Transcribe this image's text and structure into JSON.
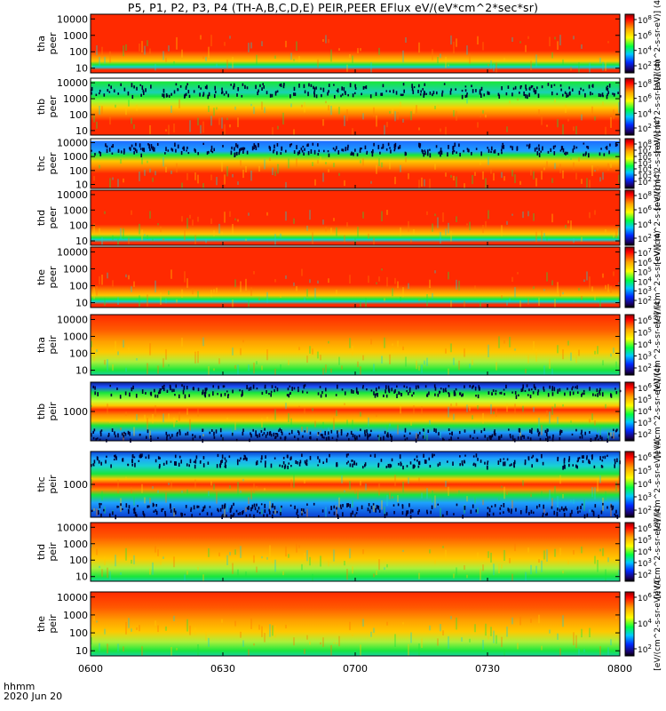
{
  "title": "P5, P1, P2, P3, P4 (TH-A,B,C,D,E) PEIR,PEER EFlux eV/(eV*cm^2*sec*sr)",
  "time_axis": {
    "label_line1": "hhmm",
    "label_line2": "2020 Jun 20",
    "ticks": [
      "0600",
      "0630",
      "0700",
      "0730",
      "0800"
    ]
  },
  "colors": {
    "background": "#ffffff",
    "spectrogram_high": "#ff2a00",
    "spectrogram_mid": "#ffc800",
    "spectrogram_low": "#19e63c",
    "spectrogram_min": "#0a1f8c",
    "gap": "#ffffff"
  },
  "chart_data": [
    {
      "type": "heatmap",
      "panel": "tha peer",
      "ylabel": [
        "tha",
        "peer"
      ],
      "yticks": [
        "10",
        "100",
        "1000",
        "10000"
      ],
      "yscale": "log",
      "colorbar_ticks": [
        "10^8",
        "10^6",
        "10^4",
        "10^2"
      ],
      "colorbar_label": "[eV/(cm^2-s-sr-eV)] (4)",
      "profile": "peer_full"
    },
    {
      "type": "heatmap",
      "panel": "thb peer",
      "ylabel": [
        "thb",
        "peer"
      ],
      "yticks": [
        "10",
        "100",
        "1000",
        "10000"
      ],
      "yscale": "log",
      "colorbar_ticks": [
        "10^8",
        "10^6",
        "10^4",
        "10^2"
      ],
      "colorbar_label": "[eV/(cm^2-s-sr-eV)] (4)",
      "profile": "peer_sparse"
    },
    {
      "type": "heatmap",
      "panel": "thc peer",
      "ylabel": [
        "thc",
        "peer"
      ],
      "yticks": [
        "10",
        "100",
        "1000",
        "10000"
      ],
      "yscale": "log",
      "colorbar_ticks": [
        "10^8",
        "10^7",
        "10^6",
        "10^5",
        "10^4",
        "10^3",
        "10^2"
      ],
      "colorbar_label": "[eV/(cm^2-s-sr-eV)] (4)",
      "profile": "peer_sparse_blue"
    },
    {
      "type": "heatmap",
      "panel": "thd peer",
      "ylabel": [
        "thd",
        "peer"
      ],
      "yticks": [
        "10",
        "100",
        "1000",
        "10000"
      ],
      "yscale": "log",
      "colorbar_ticks": [
        "10^8",
        "10^6",
        "10^4",
        "10^2"
      ],
      "colorbar_label": "[eV/(cm^2-s-sr-eV)] (4)",
      "profile": "peer_full"
    },
    {
      "type": "heatmap",
      "panel": "the peer",
      "ylabel": [
        "the",
        "peer"
      ],
      "yticks": [
        "10",
        "100",
        "1000",
        "10000"
      ],
      "yscale": "log",
      "colorbar_ticks": [
        "10^7",
        "10^6",
        "10^5",
        "10^4",
        "10^3",
        "10^2"
      ],
      "colorbar_label": "[eV/(cm^2-s-sr-eV)] (4)",
      "profile": "peer_full"
    },
    {
      "type": "heatmap",
      "panel": "tha peir",
      "ylabel": [
        "tha",
        "peir"
      ],
      "yticks": [
        "10",
        "100",
        "1000",
        "10000"
      ],
      "yscale": "log",
      "colorbar_ticks": [
        "10^6",
        "10^5",
        "10^4",
        "10^3",
        "10^2"
      ],
      "colorbar_label": "[eV/(cm^2-s-sr-eV)] (4)",
      "profile": "peir_full"
    },
    {
      "type": "heatmap",
      "panel": "thb peir",
      "ylabel": [
        "thb",
        "peir"
      ],
      "yticks": [
        "1000"
      ],
      "yscale": "log",
      "colorbar_ticks": [
        "10^6",
        "10^5",
        "10^4",
        "10^3",
        "10^2"
      ],
      "colorbar_label": "[eV/(cm^2-s-sr-eV)] (4)",
      "profile": "peir_narrow"
    },
    {
      "type": "heatmap",
      "panel": "thc peir",
      "ylabel": [
        "thc",
        "peir"
      ],
      "yticks": [
        "1000"
      ],
      "yscale": "log",
      "colorbar_ticks": [
        "10^6",
        "10^5",
        "10^4",
        "10^3",
        "10^2"
      ],
      "colorbar_label": "[eV/(cm^2-s-sr-eV)] (4)",
      "profile": "peir_narrow_blue"
    },
    {
      "type": "heatmap",
      "panel": "thd peir",
      "ylabel": [
        "thd",
        "peir"
      ],
      "yticks": [
        "10",
        "100",
        "1000",
        "10000"
      ],
      "yscale": "log",
      "colorbar_ticks": [
        "10^6",
        "10^5",
        "10^4",
        "10^3",
        "10^2"
      ],
      "colorbar_label": "[eV/(cm^2-s-sr-eV)] (4)",
      "profile": "peir_full"
    },
    {
      "type": "heatmap",
      "panel": "the peir",
      "ylabel": [
        "the",
        "peir"
      ],
      "yticks": [
        "10",
        "100",
        "1000",
        "10000"
      ],
      "yscale": "log",
      "colorbar_ticks": [
        "10^6",
        "10^4",
        "10^2"
      ],
      "colorbar_label": "[eV/(cm^2-s-sr-eV)] (4)",
      "profile": "peir_full"
    }
  ]
}
